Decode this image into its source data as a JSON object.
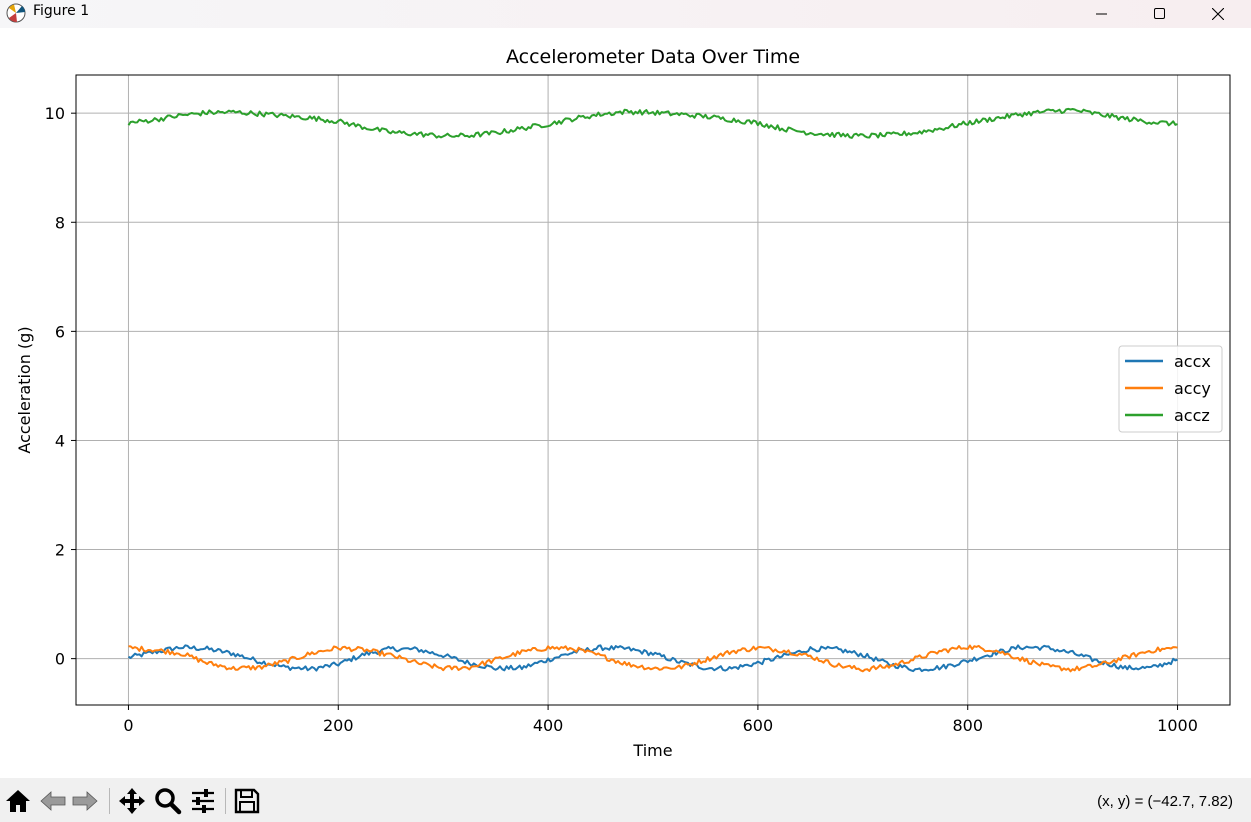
{
  "window": {
    "title": "Figure 1",
    "app_icon": "matplotlib-logo-icon",
    "controls": [
      "minimize-icon",
      "maximize-icon",
      "close-icon"
    ]
  },
  "toolbar": {
    "buttons": [
      "home-icon",
      "back-arrow-icon",
      "forward-arrow-icon",
      "pan-move-icon",
      "zoom-magnifier-icon",
      "configure-subplots-icon",
      "save-floppy-icon"
    ],
    "coords": "(x, y) = (−42.7, 7.82)"
  },
  "chart_data": {
    "type": "line",
    "title": "Accelerometer Data Over Time",
    "xlabel": "Time",
    "ylabel": "Acceleration (g)",
    "xlim": [
      -50,
      1050
    ],
    "ylim": [
      -0.85,
      10.7
    ],
    "xticks": [
      0,
      200,
      400,
      600,
      800,
      1000
    ],
    "yticks": [
      0,
      2,
      4,
      6,
      8,
      10
    ],
    "grid": true,
    "legend": {
      "position": "center-right",
      "entries": [
        "accx",
        "accy",
        "accz"
      ]
    },
    "colors": {
      "accx": "#1f77b4",
      "accy": "#ff7f0e",
      "accz": "#2ca02c",
      "grid": "#b0b0b0"
    },
    "x": [
      0,
      25,
      50,
      75,
      100,
      125,
      150,
      175,
      200,
      225,
      250,
      275,
      300,
      325,
      350,
      375,
      400,
      425,
      450,
      475,
      500,
      525,
      550,
      575,
      600,
      625,
      650,
      675,
      700,
      725,
      750,
      775,
      800,
      825,
      850,
      875,
      900,
      925,
      950,
      975,
      1000
    ],
    "series": [
      {
        "name": "accx",
        "values": [
          0.02,
          0.12,
          0.21,
          0.18,
          0.09,
          -0.05,
          -0.16,
          -0.19,
          -0.1,
          0.08,
          0.18,
          0.17,
          0.06,
          -0.08,
          -0.18,
          -0.17,
          -0.02,
          0.12,
          0.2,
          0.18,
          0.09,
          -0.06,
          -0.17,
          -0.18,
          -0.08,
          0.05,
          0.18,
          0.17,
          0.07,
          -0.1,
          -0.2,
          -0.16,
          -0.04,
          0.1,
          0.21,
          0.2,
          0.1,
          -0.05,
          -0.17,
          -0.17,
          -0.02
        ]
      },
      {
        "name": "accy",
        "values": [
          0.2,
          0.16,
          0.1,
          -0.08,
          -0.18,
          -0.16,
          -0.05,
          0.1,
          0.2,
          0.16,
          0.06,
          -0.08,
          -0.18,
          -0.16,
          -0.02,
          0.12,
          0.2,
          0.18,
          0.05,
          -0.1,
          -0.18,
          -0.16,
          -0.02,
          0.13,
          0.2,
          0.15,
          0.04,
          -0.12,
          -0.2,
          -0.14,
          0.0,
          0.14,
          0.22,
          0.16,
          0.0,
          -0.14,
          -0.2,
          -0.12,
          0.02,
          0.15,
          0.2
        ]
      },
      {
        "name": "accz",
        "values": [
          9.82,
          9.88,
          9.96,
          10.01,
          10.02,
          9.99,
          9.95,
          9.91,
          9.85,
          9.74,
          9.65,
          9.62,
          9.58,
          9.59,
          9.64,
          9.72,
          9.8,
          9.9,
          9.98,
          10.03,
          10.01,
          9.98,
          9.94,
          9.88,
          9.82,
          9.71,
          9.64,
          9.6,
          9.58,
          9.6,
          9.64,
          9.72,
          9.82,
          9.9,
          9.98,
          10.03,
          10.06,
          9.98,
          9.9,
          9.84,
          9.8
        ]
      }
    ]
  }
}
